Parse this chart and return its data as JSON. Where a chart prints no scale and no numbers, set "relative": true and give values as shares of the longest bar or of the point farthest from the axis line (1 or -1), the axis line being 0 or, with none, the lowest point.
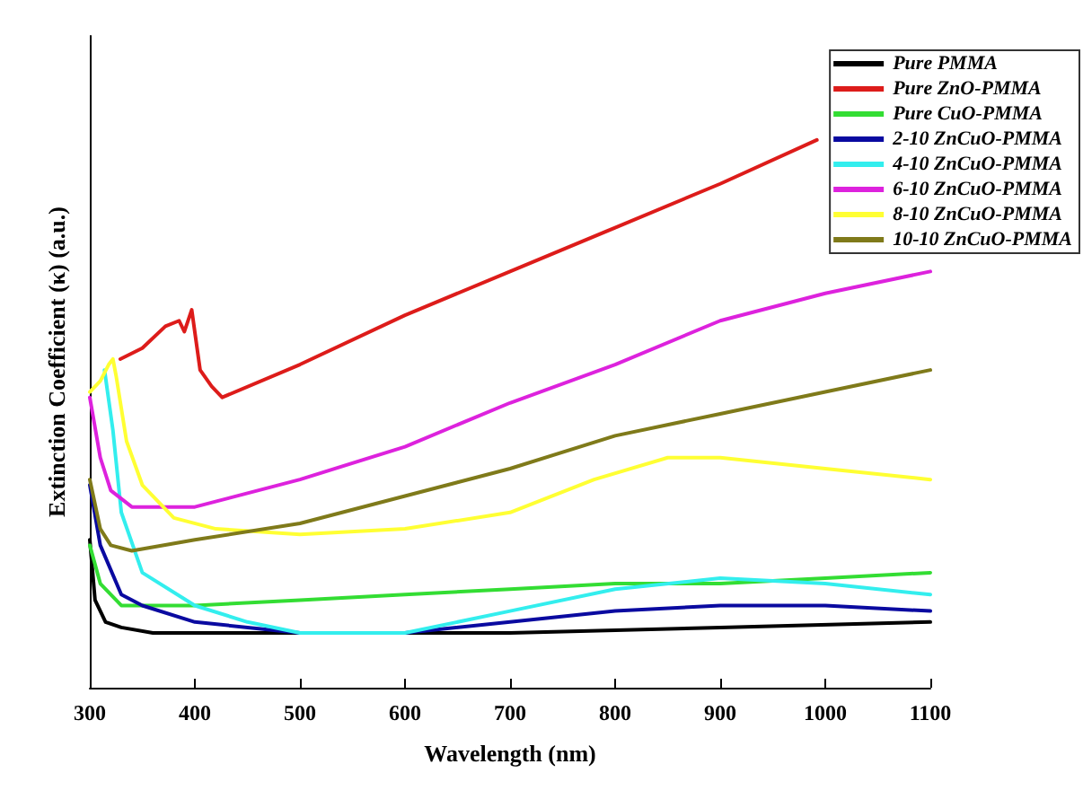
{
  "chart_data": {
    "type": "line",
    "relative": true,
    "xlabel": "Wavelength (nm)",
    "ylabel": "Extinction Coefficient (κ) (a.u.)",
    "xlim": [
      300,
      1100
    ],
    "xticks": [
      300,
      400,
      500,
      600,
      700,
      800,
      900,
      1000,
      1100
    ],
    "grid": false,
    "legend": "top right",
    "marker": "none",
    "line_style": "solid",
    "series": [
      {
        "name": "Pure PMMA",
        "color": "#000000",
        "x": [
          300,
          305,
          315,
          330,
          360,
          500,
          700,
          900,
          1100
        ],
        "values": [
          0.27,
          0.16,
          0.12,
          0.11,
          0.1,
          0.1,
          0.1,
          0.11,
          0.12
        ]
      },
      {
        "name": "Pure ZnO-PMMA",
        "color": "#dd1c1a",
        "x": [
          329,
          350,
          372,
          385,
          390,
          397,
          405,
          416,
          426,
          500,
          600,
          700,
          800,
          900,
          992
        ],
        "values": [
          0.6,
          0.62,
          0.66,
          0.67,
          0.65,
          0.69,
          0.58,
          0.55,
          0.53,
          0.59,
          0.68,
          0.76,
          0.84,
          0.92,
          1
        ]
      },
      {
        "name": "Pure CuO-PMMA",
        "color": "#33dd33",
        "x": [
          300,
          310,
          330,
          350,
          400,
          500,
          600,
          700,
          800,
          900,
          1000,
          1100
        ],
        "values": [
          0.26,
          0.19,
          0.15,
          0.15,
          0.15,
          0.16,
          0.17,
          0.18,
          0.19,
          0.19,
          0.2,
          0.21
        ]
      },
      {
        "name": "2-10 ZnCuO-PMMA",
        "color": "#0a0aa0",
        "x": [
          300,
          310,
          330,
          350,
          400,
          500,
          600,
          700,
          800,
          900,
          1000,
          1100
        ],
        "values": [
          0.37,
          0.26,
          0.17,
          0.15,
          0.12,
          0.1,
          0.1,
          0.12,
          0.14,
          0.15,
          0.15,
          0.14
        ]
      },
      {
        "name": "4-10 ZnCuO-PMMA",
        "color": "#33eeee",
        "x": [
          314,
          322,
          330,
          350,
          400,
          450,
          500,
          600,
          700,
          800,
          900,
          1000,
          1100
        ],
        "values": [
          0.58,
          0.47,
          0.32,
          0.21,
          0.15,
          0.12,
          0.1,
          0.1,
          0.14,
          0.18,
          0.2,
          0.19,
          0.17
        ]
      },
      {
        "name": "6-10 ZnCuO-PMMA",
        "color": "#dd22dd",
        "x": [
          300,
          310,
          320,
          340,
          360,
          400,
          500,
          600,
          700,
          800,
          900,
          1000,
          1100
        ],
        "values": [
          0.53,
          0.42,
          0.36,
          0.33,
          0.33,
          0.33,
          0.38,
          0.44,
          0.52,
          0.59,
          0.67,
          0.72,
          0.76
        ]
      },
      {
        "name": "8-10 ZnCuO-PMMA",
        "color": "#ffff33",
        "x": [
          300,
          310,
          318,
          322,
          325,
          335,
          350,
          380,
          420,
          500,
          600,
          700,
          780,
          850,
          900,
          1000,
          1100
        ],
        "values": [
          0.54,
          0.56,
          0.59,
          0.6,
          0.57,
          0.45,
          0.37,
          0.31,
          0.29,
          0.28,
          0.29,
          0.32,
          0.38,
          0.42,
          0.42,
          0.4,
          0.38
        ]
      },
      {
        "name": "10-10 ZnCuO-PMMA",
        "color": "#7f7a1a",
        "x": [
          300,
          310,
          320,
          340,
          400,
          500,
          600,
          700,
          800,
          900,
          1000,
          1100
        ],
        "values": [
          0.38,
          0.29,
          0.26,
          0.25,
          0.27,
          0.3,
          0.35,
          0.4,
          0.46,
          0.5,
          0.54,
          0.58
        ]
      }
    ]
  }
}
